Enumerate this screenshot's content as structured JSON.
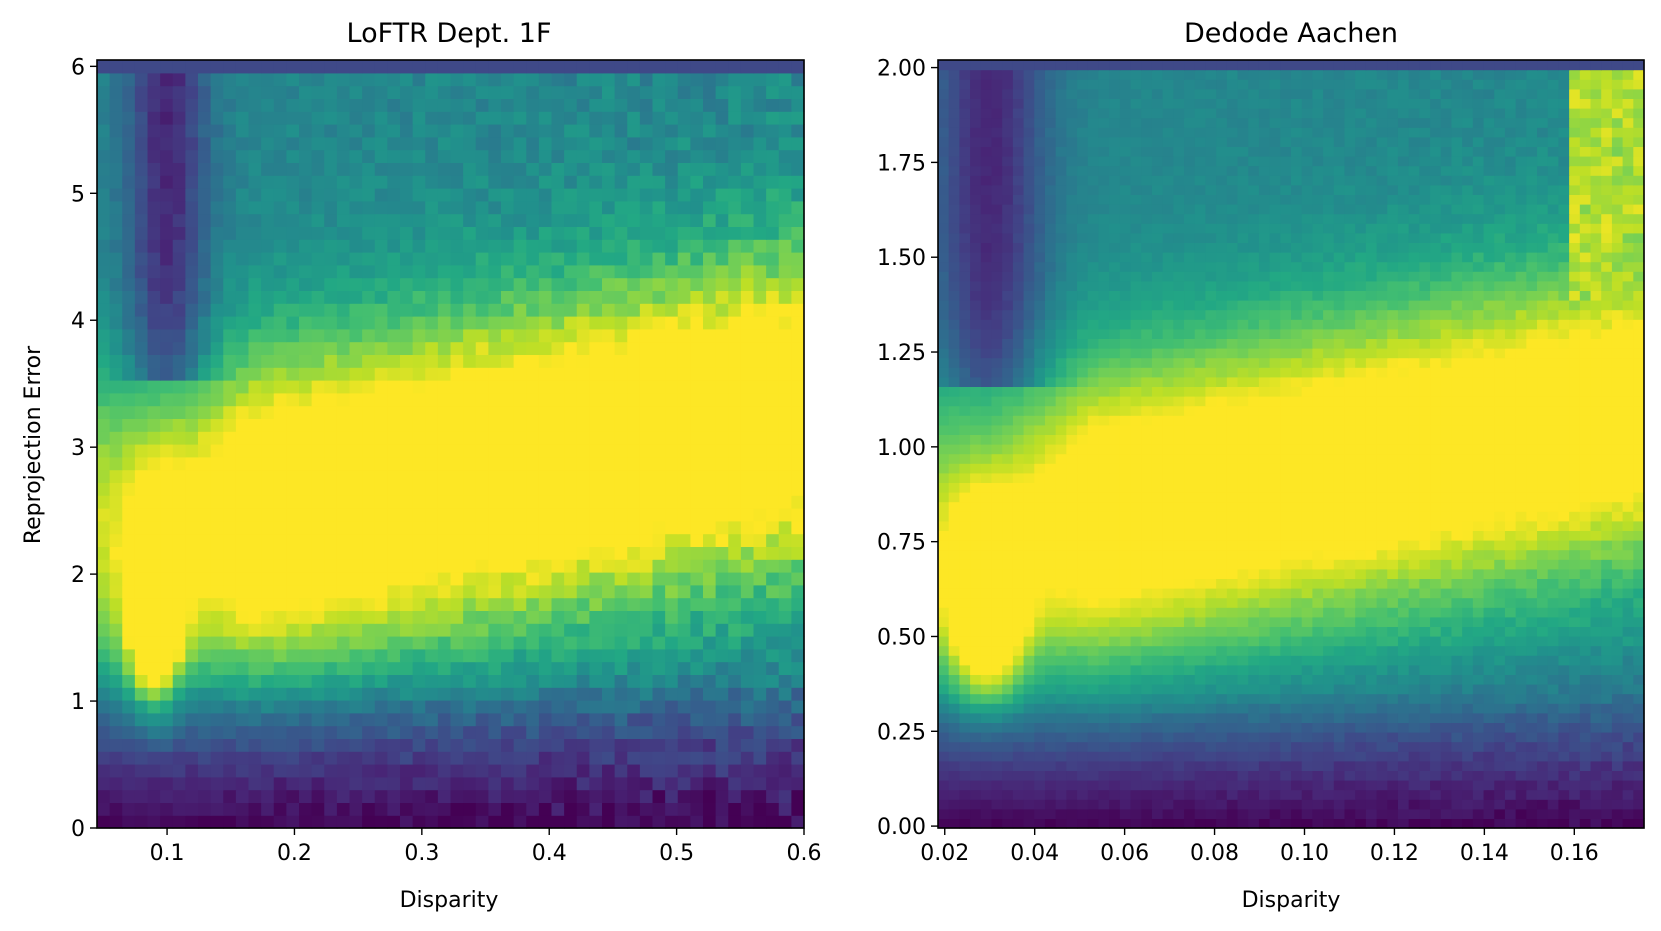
{
  "chart_data": [
    {
      "type": "heatmap",
      "title": "LoFTR Dept. 1F",
      "xlabel": "Disparity",
      "ylabel": "Reprojection Error",
      "xlim": [
        0.045,
        0.6
      ],
      "ylim": [
        0,
        6.05
      ],
      "xticks": [
        0.1,
        0.2,
        0.3,
        0.4,
        0.5,
        0.6
      ],
      "xtick_labels": [
        "0.1",
        "0.2",
        "0.3",
        "0.4",
        "0.5",
        "0.6"
      ],
      "yticks": [
        0,
        1,
        2,
        3,
        4,
        5,
        6
      ],
      "ytick_labels": [
        "0",
        "1",
        "2",
        "3",
        "4",
        "5",
        "6"
      ],
      "colormap": "viridis",
      "grid": false,
      "bins": {
        "x": 56,
        "y": 60
      },
      "features": {
        "hotspot": {
          "x": 0.09,
          "y": 1.8,
          "sx": 0.014,
          "sy": 0.55,
          "amp": 0.95
        },
        "band": {
          "x0": 0.13,
          "y_at_x0": 2.4,
          "y_at_x1": 3.3,
          "sy": 0.85,
          "amp": 0.85
        },
        "cold_column": {
          "x": 0.1,
          "y_from": 3.5,
          "amp": 0.35
        },
        "low_density_floor": {
          "y_below": 1.2
        },
        "top_edge_row": {
          "y_from": 5.93,
          "value": 0.22
        }
      },
      "noise": 0.06
    },
    {
      "type": "heatmap",
      "title": "Dedode Aachen",
      "xlabel": "Disparity",
      "ylabel": "",
      "xlim": [
        0.0185,
        0.1755
      ],
      "ylim": [
        -0.005,
        2.02
      ],
      "xticks": [
        0.02,
        0.04,
        0.06,
        0.08,
        0.1,
        0.12,
        0.14,
        0.16
      ],
      "xtick_labels": [
        "0.02",
        "0.04",
        "0.06",
        "0.08",
        "0.10",
        "0.12",
        "0.14",
        "0.16"
      ],
      "yticks": [
        0,
        0.25,
        0.5,
        0.75,
        1.0,
        1.25,
        1.5,
        1.75,
        2.0
      ],
      "ytick_labels": [
        "0.00",
        "0.25",
        "0.50",
        "0.75",
        "1.00",
        "1.25",
        "1.50",
        "1.75",
        "2.00"
      ],
      "colormap": "viridis",
      "grid": false,
      "bins": {
        "x": 66,
        "y": 80
      },
      "features": {
        "hotspot": {
          "x": 0.029,
          "y": 0.6,
          "sx": 0.0055,
          "sy": 0.16,
          "amp": 0.95
        },
        "band": {
          "x0": 0.035,
          "y_at_x0": 0.78,
          "y_at_x1": 1.1,
          "sy": 0.28,
          "amp": 0.75
        },
        "cold_column": {
          "x": 0.03,
          "y_from": 1.15,
          "amp": 0.35
        },
        "low_density_floor": {
          "y_below": 0.35
        },
        "right_edge_bright": {
          "x_from": 0.16,
          "y_from": 1.2,
          "value": 0.88
        },
        "top_edge_row": {
          "y_from": 1.985,
          "value": 0.22
        }
      },
      "noise": 0.03
    }
  ]
}
